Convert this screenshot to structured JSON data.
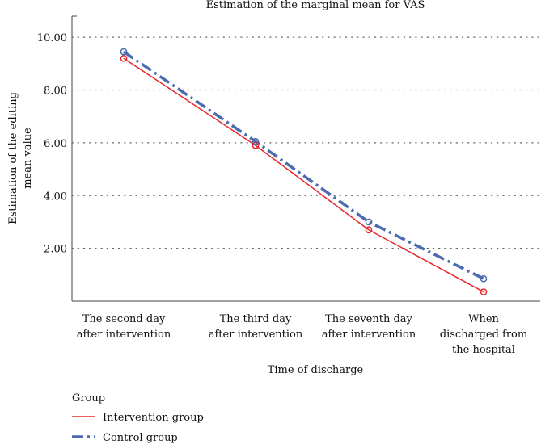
{
  "chart_data": {
    "type": "line",
    "title": "Estimation of the marginal mean for VAS",
    "xlabel": "Time of discharge",
    "ylabel_lines": [
      "Estimation of the editing",
      "mean value"
    ],
    "categories": [
      [
        "The second day",
        "after intervention"
      ],
      [
        "The third day",
        "after intervention"
      ],
      [
        "The seventh day",
        "after intervention"
      ],
      [
        "When",
        "discharged from",
        "the hospital"
      ]
    ],
    "yticks": [
      "2.00",
      "4.00",
      "6.00",
      "8.00",
      "10.00"
    ],
    "ylim": [
      0,
      10.8
    ],
    "grid": true,
    "legend_title": "Group",
    "legend_position": "bottom-left",
    "series": [
      {
        "name": "Intervention group",
        "color": "#e8262a",
        "style": "solid",
        "values": [
          9.2,
          5.9,
          2.7,
          0.35
        ]
      },
      {
        "name": "Control group",
        "color": "#4a6bb0",
        "style": "dash-dot",
        "values": [
          9.45,
          6.05,
          3.0,
          0.85
        ]
      }
    ]
  }
}
